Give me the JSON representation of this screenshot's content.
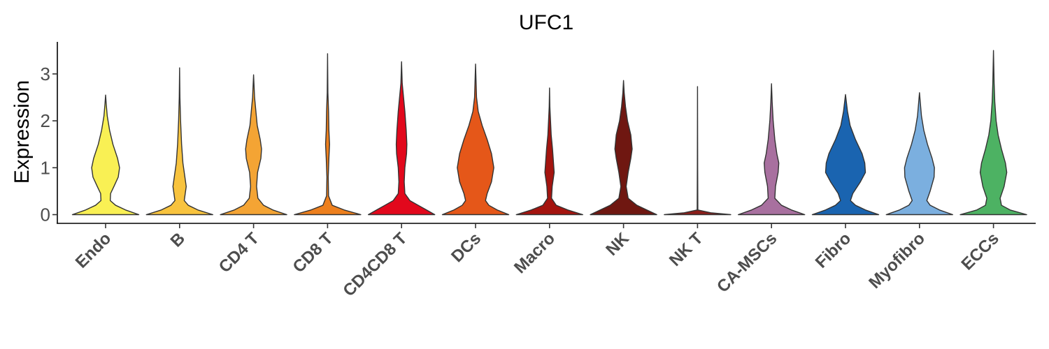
{
  "chart_data": {
    "type": "violin",
    "title": "UFC1",
    "xlabel": "",
    "ylabel": "Expression",
    "ylim": [
      0,
      3.5
    ],
    "yticks": [
      0,
      1,
      2,
      3
    ],
    "legend": "none",
    "grid": false,
    "categories": [
      "Endo",
      "B",
      "CD4 T",
      "CD8 T",
      "CD4CD8 T",
      "DCs",
      "Macro",
      "NK",
      "NK T",
      "CA-MSCs",
      "Fibro",
      "Myofibro",
      "ECCs"
    ],
    "colors": [
      "#F9F054",
      "#F8C33E",
      "#F4A434",
      "#ED7F1D",
      "#E2081C",
      "#E55719",
      "#A4140F",
      "#6F1711",
      "#8B1E1A",
      "#A8709F",
      "#1A64B0",
      "#7BAFDF",
      "#4DB263"
    ],
    "max_values": [
      2.55,
      3.13,
      2.98,
      3.43,
      3.26,
      3.21,
      2.7,
      2.86,
      2.73,
      2.79,
      2.56,
      2.6,
      3.5
    ],
    "density_profiles": [
      [
        [
          0,
          1.0
        ],
        [
          0.1,
          0.6
        ],
        [
          0.2,
          0.3
        ],
        [
          0.3,
          0.14
        ],
        [
          0.45,
          0.15
        ],
        [
          0.6,
          0.25
        ],
        [
          0.8,
          0.38
        ],
        [
          1.0,
          0.42
        ],
        [
          1.2,
          0.36
        ],
        [
          1.5,
          0.22
        ],
        [
          1.8,
          0.12
        ],
        [
          2.1,
          0.05
        ],
        [
          2.35,
          0.02
        ],
        [
          2.55,
          0
        ]
      ],
      [
        [
          0,
          1.0
        ],
        [
          0.1,
          0.55
        ],
        [
          0.2,
          0.26
        ],
        [
          0.3,
          0.14
        ],
        [
          0.45,
          0.17
        ],
        [
          0.6,
          0.2
        ],
        [
          0.8,
          0.16
        ],
        [
          1.1,
          0.1
        ],
        [
          1.5,
          0.06
        ],
        [
          2.0,
          0.03
        ],
        [
          2.5,
          0.01
        ],
        [
          3.13,
          0
        ]
      ],
      [
        [
          0,
          1.0
        ],
        [
          0.1,
          0.58
        ],
        [
          0.2,
          0.3
        ],
        [
          0.35,
          0.13
        ],
        [
          0.6,
          0.09
        ],
        [
          0.9,
          0.12
        ],
        [
          1.2,
          0.22
        ],
        [
          1.4,
          0.24
        ],
        [
          1.6,
          0.2
        ],
        [
          1.9,
          0.11
        ],
        [
          2.2,
          0.07
        ],
        [
          2.5,
          0.03
        ],
        [
          2.98,
          0
        ]
      ],
      [
        [
          0,
          1.0
        ],
        [
          0.1,
          0.5
        ],
        [
          0.2,
          0.14
        ],
        [
          0.4,
          0.03
        ],
        [
          0.8,
          0.02
        ],
        [
          1.2,
          0.04
        ],
        [
          1.5,
          0.06
        ],
        [
          1.8,
          0.04
        ],
        [
          2.2,
          0.03
        ],
        [
          2.6,
          0.01
        ],
        [
          3.43,
          0
        ]
      ],
      [
        [
          0,
          1.0
        ],
        [
          0.1,
          0.75
        ],
        [
          0.2,
          0.5
        ],
        [
          0.3,
          0.25
        ],
        [
          0.45,
          0.1
        ],
        [
          0.7,
          0.08
        ],
        [
          1.0,
          0.1
        ],
        [
          1.3,
          0.15
        ],
        [
          1.5,
          0.16
        ],
        [
          1.8,
          0.14
        ],
        [
          2.2,
          0.1
        ],
        [
          2.5,
          0.06
        ],
        [
          2.8,
          0.02
        ],
        [
          3.26,
          0
        ]
      ],
      [
        [
          0,
          1.0
        ],
        [
          0.1,
          0.65
        ],
        [
          0.2,
          0.4
        ],
        [
          0.3,
          0.3
        ],
        [
          0.45,
          0.35
        ],
        [
          0.7,
          0.48
        ],
        [
          1.0,
          0.55
        ],
        [
          1.3,
          0.48
        ],
        [
          1.6,
          0.35
        ],
        [
          1.9,
          0.2
        ],
        [
          2.2,
          0.08
        ],
        [
          2.5,
          0.03
        ],
        [
          3.21,
          0
        ]
      ],
      [
        [
          0,
          1.0
        ],
        [
          0.1,
          0.55
        ],
        [
          0.2,
          0.2
        ],
        [
          0.35,
          0.06
        ],
        [
          0.6,
          0.08
        ],
        [
          0.9,
          0.14
        ],
        [
          1.1,
          0.12
        ],
        [
          1.4,
          0.09
        ],
        [
          1.7,
          0.05
        ],
        [
          2.0,
          0.03
        ],
        [
          2.3,
          0.01
        ],
        [
          2.7,
          0
        ]
      ],
      [
        [
          0,
          1.0
        ],
        [
          0.1,
          0.7
        ],
        [
          0.2,
          0.4
        ],
        [
          0.35,
          0.14
        ],
        [
          0.6,
          0.08
        ],
        [
          0.9,
          0.14
        ],
        [
          1.2,
          0.22
        ],
        [
          1.4,
          0.26
        ],
        [
          1.7,
          0.22
        ],
        [
          2.0,
          0.12
        ],
        [
          2.3,
          0.06
        ],
        [
          2.6,
          0.02
        ],
        [
          2.86,
          0
        ]
      ],
      [
        [
          0,
          1.0
        ],
        [
          0.04,
          0.4
        ],
        [
          0.1,
          0.01
        ],
        [
          1.0,
          0.005
        ],
        [
          2.73,
          0
        ]
      ],
      [
        [
          0,
          1.0
        ],
        [
          0.1,
          0.6
        ],
        [
          0.2,
          0.3
        ],
        [
          0.35,
          0.1
        ],
        [
          0.6,
          0.12
        ],
        [
          0.9,
          0.2
        ],
        [
          1.1,
          0.22
        ],
        [
          1.3,
          0.16
        ],
        [
          1.6,
          0.1
        ],
        [
          2.0,
          0.05
        ],
        [
          2.4,
          0.02
        ],
        [
          2.79,
          0
        ]
      ],
      [
        [
          0,
          1.0
        ],
        [
          0.1,
          0.6
        ],
        [
          0.2,
          0.3
        ],
        [
          0.3,
          0.15
        ],
        [
          0.45,
          0.22
        ],
        [
          0.7,
          0.45
        ],
        [
          0.9,
          0.6
        ],
        [
          1.1,
          0.58
        ],
        [
          1.3,
          0.5
        ],
        [
          1.6,
          0.3
        ],
        [
          1.9,
          0.14
        ],
        [
          2.2,
          0.06
        ],
        [
          2.56,
          0
        ]
      ],
      [
        [
          0,
          1.0
        ],
        [
          0.1,
          0.6
        ],
        [
          0.2,
          0.32
        ],
        [
          0.3,
          0.22
        ],
        [
          0.5,
          0.32
        ],
        [
          0.8,
          0.44
        ],
        [
          1.0,
          0.45
        ],
        [
          1.2,
          0.38
        ],
        [
          1.5,
          0.24
        ],
        [
          1.8,
          0.13
        ],
        [
          2.1,
          0.06
        ],
        [
          2.6,
          0
        ]
      ],
      [
        [
          0,
          1.0
        ],
        [
          0.1,
          0.5
        ],
        [
          0.2,
          0.24
        ],
        [
          0.35,
          0.2
        ],
        [
          0.6,
          0.32
        ],
        [
          0.9,
          0.4
        ],
        [
          1.1,
          0.36
        ],
        [
          1.4,
          0.24
        ],
        [
          1.7,
          0.14
        ],
        [
          2.0,
          0.08
        ],
        [
          2.4,
          0.04
        ],
        [
          2.8,
          0.02
        ],
        [
          3.5,
          0
        ]
      ]
    ]
  }
}
